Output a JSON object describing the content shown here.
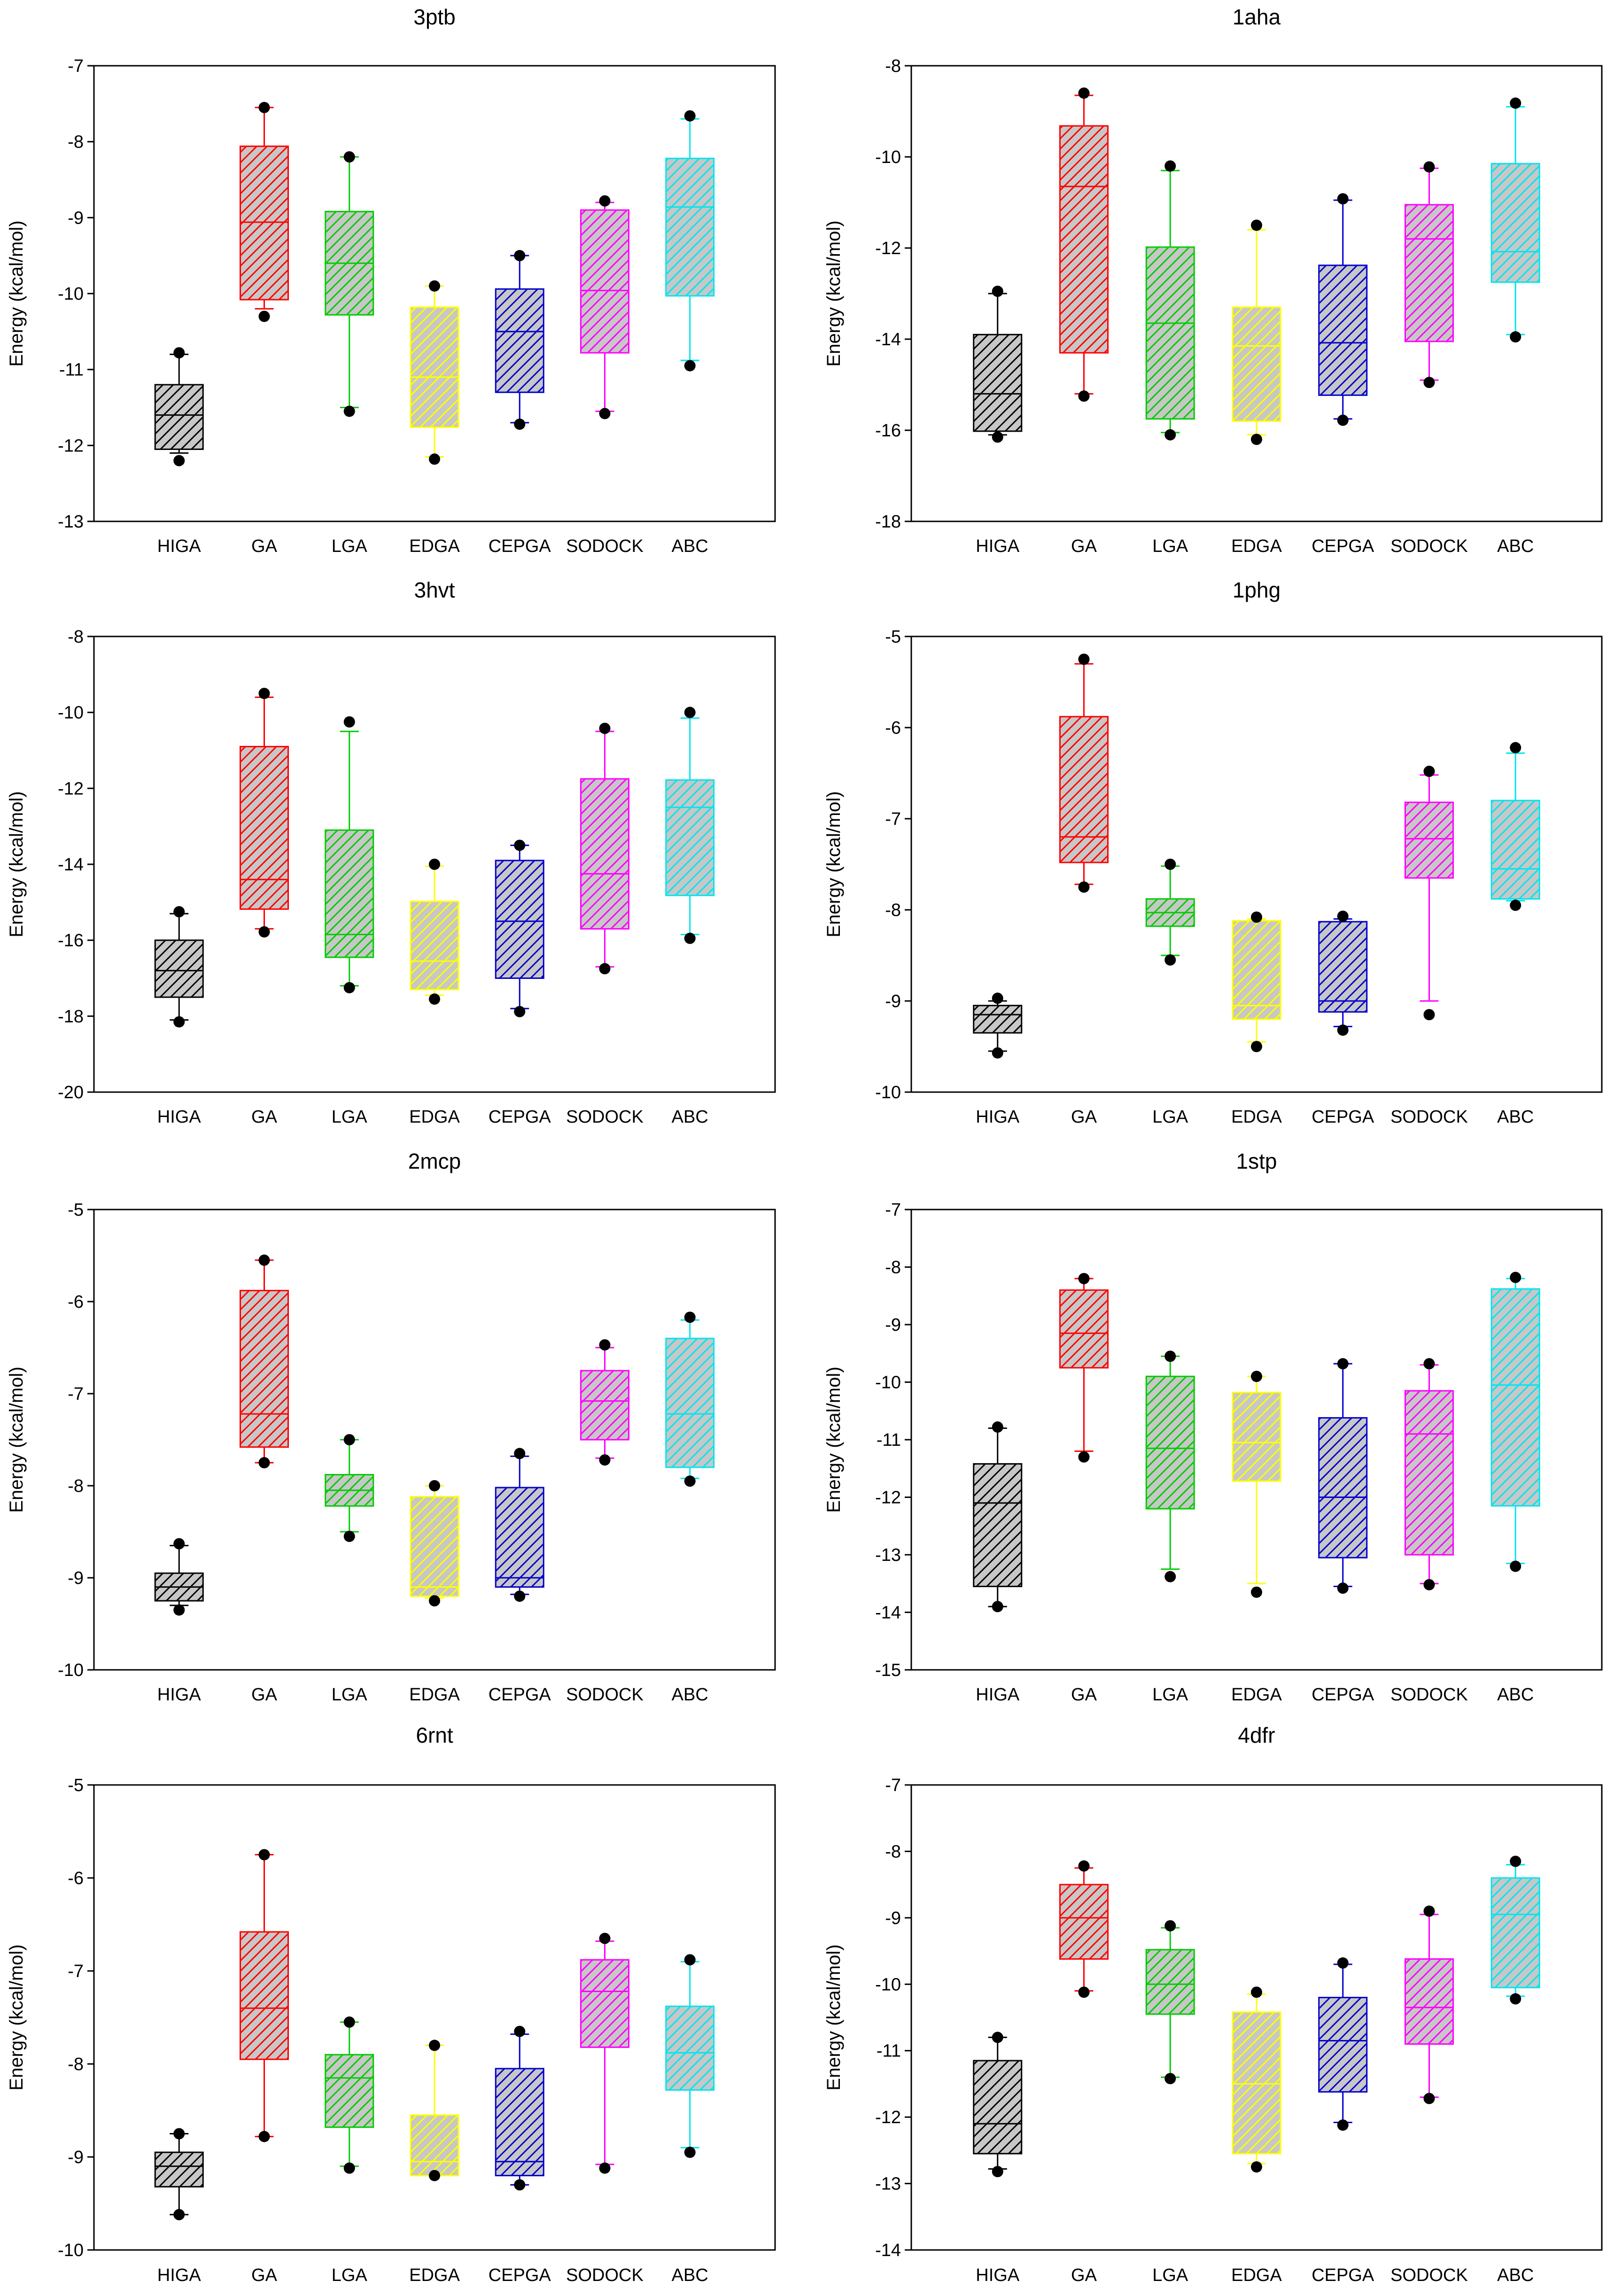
{
  "chart_data": [
    {
      "type": "box",
      "title": "3ptb",
      "ylabel": "Energy (kcal/mol)",
      "xlabel": "",
      "ylim": [
        -13,
        -7
      ],
      "yticks": [
        -7,
        -8,
        -9,
        -10,
        -11,
        -12,
        -13
      ],
      "categories": [
        "HIGA",
        "GA",
        "LGA",
        "EDGA",
        "CEPGA",
        "SODOCK",
        "ABC"
      ],
      "boxes": [
        {
          "name": "HIGA",
          "color": "#000000",
          "wlo": -12.1,
          "q1": -12.05,
          "med": -11.6,
          "q3": -11.2,
          "whi": -10.8,
          "outlo": -12.2,
          "outhi": -10.78
        },
        {
          "name": "GA",
          "color": "#ff0000",
          "wlo": -10.2,
          "q1": -10.08,
          "med": -9.06,
          "q3": -8.06,
          "whi": -7.55,
          "outlo": -10.3,
          "outhi": -7.55
        },
        {
          "name": "LGA",
          "color": "#00cc00",
          "wlo": -11.5,
          "q1": -10.28,
          "med": -9.6,
          "q3": -8.92,
          "whi": -8.2,
          "outlo": -11.55,
          "outhi": -8.2
        },
        {
          "name": "EDGA",
          "color": "#ffff00",
          "wlo": -12.15,
          "q1": -11.76,
          "med": -11.1,
          "q3": -10.18,
          "whi": -9.9,
          "outlo": -12.18,
          "outhi": -9.9
        },
        {
          "name": "CEPGA",
          "color": "#0000cc",
          "wlo": -11.7,
          "q1": -11.3,
          "med": -10.5,
          "q3": -9.94,
          "whi": -9.5,
          "outlo": -11.72,
          "outhi": -9.5
        },
        {
          "name": "SODOCK",
          "color": "#ff00ff",
          "wlo": -11.55,
          "q1": -10.78,
          "med": -9.96,
          "q3": -8.9,
          "whi": -8.8,
          "outlo": -11.58,
          "outhi": -8.78
        },
        {
          "name": "ABC",
          "color": "#00e5ee",
          "wlo": -10.88,
          "q1": -10.03,
          "med": -8.86,
          "q3": -8.22,
          "whi": -7.7,
          "outlo": -10.95,
          "outhi": -7.66
        }
      ]
    },
    {
      "type": "box",
      "title": "1aha",
      "ylabel": "Energy (kcal/mol)",
      "xlabel": "",
      "ylim": [
        -18,
        -8
      ],
      "yticks": [
        -8,
        -10,
        -12,
        -14,
        -16,
        -18
      ],
      "categories": [
        "HIGA",
        "GA",
        "LGA",
        "EDGA",
        "CEPGA",
        "SODOCK",
        "ABC"
      ],
      "boxes": [
        {
          "name": "HIGA",
          "color": "#000000",
          "wlo": -16.1,
          "q1": -16.02,
          "med": -15.2,
          "q3": -13.9,
          "whi": -13.0,
          "outlo": -16.15,
          "outhi": -12.95
        },
        {
          "name": "GA",
          "color": "#ff0000",
          "wlo": -15.2,
          "q1": -14.3,
          "med": -10.65,
          "q3": -9.32,
          "whi": -8.65,
          "outlo": -15.25,
          "outhi": -8.6
        },
        {
          "name": "LGA",
          "color": "#00cc00",
          "wlo": -16.05,
          "q1": -15.75,
          "med": -13.65,
          "q3": -11.98,
          "whi": -10.3,
          "outlo": -16.1,
          "outhi": -10.2
        },
        {
          "name": "EDGA",
          "color": "#ffff00",
          "wlo": -16.1,
          "q1": -15.8,
          "med": -14.15,
          "q3": -13.3,
          "whi": -11.6,
          "outlo": -16.2,
          "outhi": -11.5
        },
        {
          "name": "CEPGA",
          "color": "#0000cc",
          "wlo": -15.75,
          "q1": -15.23,
          "med": -14.08,
          "q3": -12.38,
          "whi": -10.95,
          "outlo": -15.78,
          "outhi": -10.92
        },
        {
          "name": "SODOCK",
          "color": "#ff00ff",
          "wlo": -14.9,
          "q1": -14.05,
          "med": -11.8,
          "q3": -11.05,
          "whi": -10.25,
          "outlo": -14.95,
          "outhi": -10.22
        },
        {
          "name": "ABC",
          "color": "#00e5ee",
          "wlo": -13.9,
          "q1": -12.75,
          "med": -12.08,
          "q3": -10.15,
          "whi": -8.9,
          "outlo": -13.95,
          "outhi": -8.82
        }
      ]
    },
    {
      "type": "box",
      "title": "3hvt",
      "ylabel": "Energy (kcal/mol)",
      "xlabel": "",
      "ylim": [
        -20,
        -8
      ],
      "yticks": [
        -8,
        -10,
        -12,
        -14,
        -16,
        -18,
        -20
      ],
      "categories": [
        "HIGA",
        "GA",
        "LGA",
        "EDGA",
        "CEPGA",
        "SODOCK",
        "ABC"
      ],
      "boxes": [
        {
          "name": "HIGA",
          "color": "#000000",
          "wlo": -18.1,
          "q1": -17.5,
          "med": -16.8,
          "q3": -16.0,
          "whi": -15.3,
          "outlo": -18.15,
          "outhi": -15.25
        },
        {
          "name": "GA",
          "color": "#ff0000",
          "wlo": -15.7,
          "q1": -15.18,
          "med": -14.4,
          "q3": -10.9,
          "whi": -9.6,
          "outlo": -15.78,
          "outhi": -9.5
        },
        {
          "name": "LGA",
          "color": "#00cc00",
          "wlo": -17.2,
          "q1": -16.45,
          "med": -15.85,
          "q3": -13.1,
          "whi": -10.5,
          "outlo": -17.25,
          "outhi": -10.25
        },
        {
          "name": "EDGA",
          "color": "#ffff00",
          "wlo": -17.45,
          "q1": -17.3,
          "med": -16.55,
          "q3": -14.98,
          "whi": -14.05,
          "outlo": -17.55,
          "outhi": -14.0
        },
        {
          "name": "CEPGA",
          "color": "#0000cc",
          "wlo": -17.8,
          "q1": -17.0,
          "med": -15.5,
          "q3": -13.9,
          "whi": -13.5,
          "outlo": -17.88,
          "outhi": -13.5
        },
        {
          "name": "SODOCK",
          "color": "#ff00ff",
          "wlo": -16.7,
          "q1": -15.7,
          "med": -14.25,
          "q3": -11.75,
          "whi": -10.5,
          "outlo": -16.75,
          "outhi": -10.42
        },
        {
          "name": "ABC",
          "color": "#00e5ee",
          "wlo": -15.85,
          "q1": -14.82,
          "med": -12.5,
          "q3": -11.78,
          "whi": -10.15,
          "outlo": -15.95,
          "outhi": -10.0
        }
      ]
    },
    {
      "type": "box",
      "title": "1phg",
      "ylabel": "Energy (kcal/mol)",
      "xlabel": "",
      "ylim": [
        -10,
        -5
      ],
      "yticks": [
        -5,
        -6,
        -7,
        -8,
        -9,
        -10
      ],
      "categories": [
        "HIGA",
        "GA",
        "LGA",
        "EDGA",
        "CEPGA",
        "SODOCK",
        "ABC"
      ],
      "boxes": [
        {
          "name": "HIGA",
          "color": "#000000",
          "wlo": -9.55,
          "q1": -9.35,
          "med": -9.15,
          "q3": -9.05,
          "whi": -9.0,
          "outlo": -9.57,
          "outhi": -8.97
        },
        {
          "name": "GA",
          "color": "#ff0000",
          "wlo": -7.72,
          "q1": -7.48,
          "med": -7.2,
          "q3": -5.88,
          "whi": -5.3,
          "outlo": -7.75,
          "outhi": -5.25
        },
        {
          "name": "LGA",
          "color": "#00cc00",
          "wlo": -8.5,
          "q1": -8.18,
          "med": -8.03,
          "q3": -7.88,
          "whi": -7.52,
          "outlo": -8.55,
          "outhi": -7.5
        },
        {
          "name": "EDGA",
          "color": "#ffff00",
          "wlo": -9.45,
          "q1": -9.2,
          "med": -9.05,
          "q3": -8.12,
          "whi": -8.1,
          "outlo": -9.5,
          "outhi": -8.08
        },
        {
          "name": "CEPGA",
          "color": "#0000cc",
          "wlo": -9.28,
          "q1": -9.12,
          "med": -9.0,
          "q3": -8.13,
          "whi": -8.1,
          "outlo": -9.32,
          "outhi": -8.07
        },
        {
          "name": "SODOCK",
          "color": "#ff00ff",
          "wlo": -9.0,
          "q1": -7.65,
          "med": -7.22,
          "q3": -6.82,
          "whi": -6.52,
          "outlo": -9.15,
          "outhi": -6.48
        },
        {
          "name": "ABC",
          "color": "#00e5ee",
          "wlo": -7.9,
          "q1": -7.88,
          "med": -7.55,
          "q3": -6.8,
          "whi": -6.28,
          "outlo": -7.95,
          "outhi": -6.22
        }
      ]
    },
    {
      "type": "box",
      "title": "2mcp",
      "ylabel": "Energy (kcal/mol)",
      "xlabel": "",
      "ylim": [
        -10,
        -5
      ],
      "yticks": [
        -5,
        -6,
        -7,
        -8,
        -9,
        -10
      ],
      "categories": [
        "HIGA",
        "GA",
        "LGA",
        "EDGA",
        "CEPGA",
        "SODOCK",
        "ABC"
      ],
      "boxes": [
        {
          "name": "HIGA",
          "color": "#000000",
          "wlo": -9.3,
          "q1": -9.25,
          "med": -9.1,
          "q3": -8.95,
          "whi": -8.65,
          "outlo": -9.35,
          "outhi": -8.63
        },
        {
          "name": "GA",
          "color": "#ff0000",
          "wlo": -7.75,
          "q1": -7.58,
          "med": -7.22,
          "q3": -5.88,
          "whi": -5.55,
          "outlo": -7.75,
          "outhi": -5.55
        },
        {
          "name": "LGA",
          "color": "#00cc00",
          "wlo": -8.5,
          "q1": -8.22,
          "med": -8.05,
          "q3": -7.88,
          "whi": -7.5,
          "outlo": -8.55,
          "outhi": -7.5
        },
        {
          "name": "EDGA",
          "color": "#ffff00",
          "wlo": -9.22,
          "q1": -9.2,
          "med": -9.1,
          "q3": -8.12,
          "whi": -8.0,
          "outlo": -9.25,
          "outhi": -8.0
        },
        {
          "name": "CEPGA",
          "color": "#0000cc",
          "wlo": -9.18,
          "q1": -9.1,
          "med": -9.0,
          "q3": -8.02,
          "whi": -7.68,
          "outlo": -9.2,
          "outhi": -7.65
        },
        {
          "name": "SODOCK",
          "color": "#ff00ff",
          "wlo": -7.7,
          "q1": -7.5,
          "med": -7.08,
          "q3": -6.75,
          "whi": -6.5,
          "outlo": -7.72,
          "outhi": -6.47
        },
        {
          "name": "ABC",
          "color": "#00e5ee",
          "wlo": -7.92,
          "q1": -7.8,
          "med": -7.22,
          "q3": -6.4,
          "whi": -6.2,
          "outlo": -7.95,
          "outhi": -6.17
        }
      ]
    },
    {
      "type": "box",
      "title": "1stp",
      "ylabel": "Energy (kcal/mol)",
      "xlabel": "",
      "ylim": [
        -15,
        -7
      ],
      "yticks": [
        -7,
        -8,
        -9,
        -10,
        -11,
        -12,
        -13,
        -14,
        -15
      ],
      "categories": [
        "HIGA",
        "GA",
        "LGA",
        "EDGA",
        "CEPGA",
        "SODOCK",
        "ABC"
      ],
      "boxes": [
        {
          "name": "HIGA",
          "color": "#000000",
          "wlo": -13.9,
          "q1": -13.55,
          "med": -12.1,
          "q3": -11.42,
          "whi": -10.8,
          "outlo": -13.9,
          "outhi": -10.78
        },
        {
          "name": "GA",
          "color": "#ff0000",
          "wlo": -11.2,
          "q1": -9.75,
          "med": -9.15,
          "q3": -8.4,
          "whi": -8.2,
          "outlo": -11.3,
          "outhi": -8.2
        },
        {
          "name": "LGA",
          "color": "#00cc00",
          "wlo": -13.25,
          "q1": -12.2,
          "med": -11.15,
          "q3": -9.9,
          "whi": -9.55,
          "outlo": -13.38,
          "outhi": -9.55
        },
        {
          "name": "EDGA",
          "color": "#ffff00",
          "wlo": -13.5,
          "q1": -11.72,
          "med": -11.05,
          "q3": -10.18,
          "whi": -9.9,
          "outlo": -13.65,
          "outhi": -9.9
        },
        {
          "name": "CEPGA",
          "color": "#0000cc",
          "wlo": -13.55,
          "q1": -13.05,
          "med": -12.0,
          "q3": -10.62,
          "whi": -9.68,
          "outlo": -13.58,
          "outhi": -9.68
        },
        {
          "name": "SODOCK",
          "color": "#ff00ff",
          "wlo": -13.5,
          "q1": -13.0,
          "med": -10.9,
          "q3": -10.15,
          "whi": -9.7,
          "outlo": -13.52,
          "outhi": -9.68
        },
        {
          "name": "ABC",
          "color": "#00e5ee",
          "wlo": -13.15,
          "q1": -12.15,
          "med": -10.05,
          "q3": -8.38,
          "whi": -8.2,
          "outlo": -13.2,
          "outhi": -8.18
        }
      ]
    },
    {
      "type": "box",
      "title": "6rnt",
      "ylabel": "Energy (kcal/mol)",
      "xlabel": "",
      "ylim": [
        -10,
        -5
      ],
      "yticks": [
        -5,
        -6,
        -7,
        -8,
        -9,
        -10
      ],
      "categories": [
        "HIGA",
        "GA",
        "LGA",
        "EDGA",
        "CEPGA",
        "SODOCK",
        "ABC"
      ],
      "boxes": [
        {
          "name": "HIGA",
          "color": "#000000",
          "wlo": -9.62,
          "q1": -9.32,
          "med": -9.1,
          "q3": -8.95,
          "whi": -8.75,
          "outlo": -9.62,
          "outhi": -8.75
        },
        {
          "name": "GA",
          "color": "#ff0000",
          "wlo": -8.78,
          "q1": -7.95,
          "med": -7.4,
          "q3": -6.58,
          "whi": -5.75,
          "outlo": -8.78,
          "outhi": -5.75
        },
        {
          "name": "LGA",
          "color": "#00cc00",
          "wlo": -9.1,
          "q1": -8.68,
          "med": -8.15,
          "q3": -7.9,
          "whi": -7.55,
          "outlo": -9.12,
          "outhi": -7.55
        },
        {
          "name": "EDGA",
          "color": "#ffff00",
          "wlo": -9.2,
          "q1": -9.2,
          "med": -9.05,
          "q3": -8.55,
          "whi": -7.8,
          "outlo": -9.2,
          "outhi": -7.8
        },
        {
          "name": "CEPGA",
          "color": "#0000cc",
          "wlo": -9.3,
          "q1": -9.2,
          "med": -9.05,
          "q3": -8.05,
          "whi": -7.68,
          "outlo": -9.3,
          "outhi": -7.65
        },
        {
          "name": "SODOCK",
          "color": "#ff00ff",
          "wlo": -9.08,
          "q1": -7.82,
          "med": -7.22,
          "q3": -6.88,
          "whi": -6.68,
          "outlo": -9.12,
          "outhi": -6.65
        },
        {
          "name": "ABC",
          "color": "#00e5ee",
          "wlo": -8.9,
          "q1": -8.28,
          "med": -7.88,
          "q3": -7.38,
          "whi": -6.9,
          "outlo": -8.95,
          "outhi": -6.88
        }
      ]
    },
    {
      "type": "box",
      "title": "4dfr",
      "ylabel": "Energy (kcal/mol)",
      "xlabel": "",
      "ylim": [
        -14,
        -7
      ],
      "yticks": [
        -7,
        -8,
        -9,
        -10,
        -11,
        -12,
        -13,
        -14
      ],
      "categories": [
        "HIGA",
        "GA",
        "LGA",
        "EDGA",
        "CEPGA",
        "SODOCK",
        "ABC"
      ],
      "boxes": [
        {
          "name": "HIGA",
          "color": "#000000",
          "wlo": -12.78,
          "q1": -12.55,
          "med": -12.1,
          "q3": -11.15,
          "whi": -10.8,
          "outlo": -12.82,
          "outhi": -10.8
        },
        {
          "name": "GA",
          "color": "#ff0000",
          "wlo": -10.1,
          "q1": -9.62,
          "med": -9.0,
          "q3": -8.5,
          "whi": -8.25,
          "outlo": -10.12,
          "outhi": -8.22
        },
        {
          "name": "LGA",
          "color": "#00cc00",
          "wlo": -11.4,
          "q1": -10.45,
          "med": -10.0,
          "q3": -9.48,
          "whi": -9.15,
          "outlo": -11.42,
          "outhi": -9.12
        },
        {
          "name": "EDGA",
          "color": "#ffff00",
          "wlo": -12.7,
          "q1": -12.55,
          "med": -11.5,
          "q3": -10.42,
          "whi": -10.15,
          "outlo": -12.75,
          "outhi": -10.12
        },
        {
          "name": "CEPGA",
          "color": "#0000cc",
          "wlo": -12.08,
          "q1": -11.62,
          "med": -10.85,
          "q3": -10.2,
          "whi": -9.7,
          "outlo": -12.12,
          "outhi": -9.68
        },
        {
          "name": "SODOCK",
          "color": "#ff00ff",
          "wlo": -11.7,
          "q1": -10.9,
          "med": -10.35,
          "q3": -9.62,
          "whi": -8.95,
          "outlo": -11.72,
          "outhi": -8.9
        },
        {
          "name": "ABC",
          "color": "#00e5ee",
          "wlo": -10.18,
          "q1": -10.05,
          "med": -8.95,
          "q3": -8.4,
          "whi": -8.2,
          "outlo": -10.22,
          "outhi": -8.15
        }
      ]
    }
  ]
}
